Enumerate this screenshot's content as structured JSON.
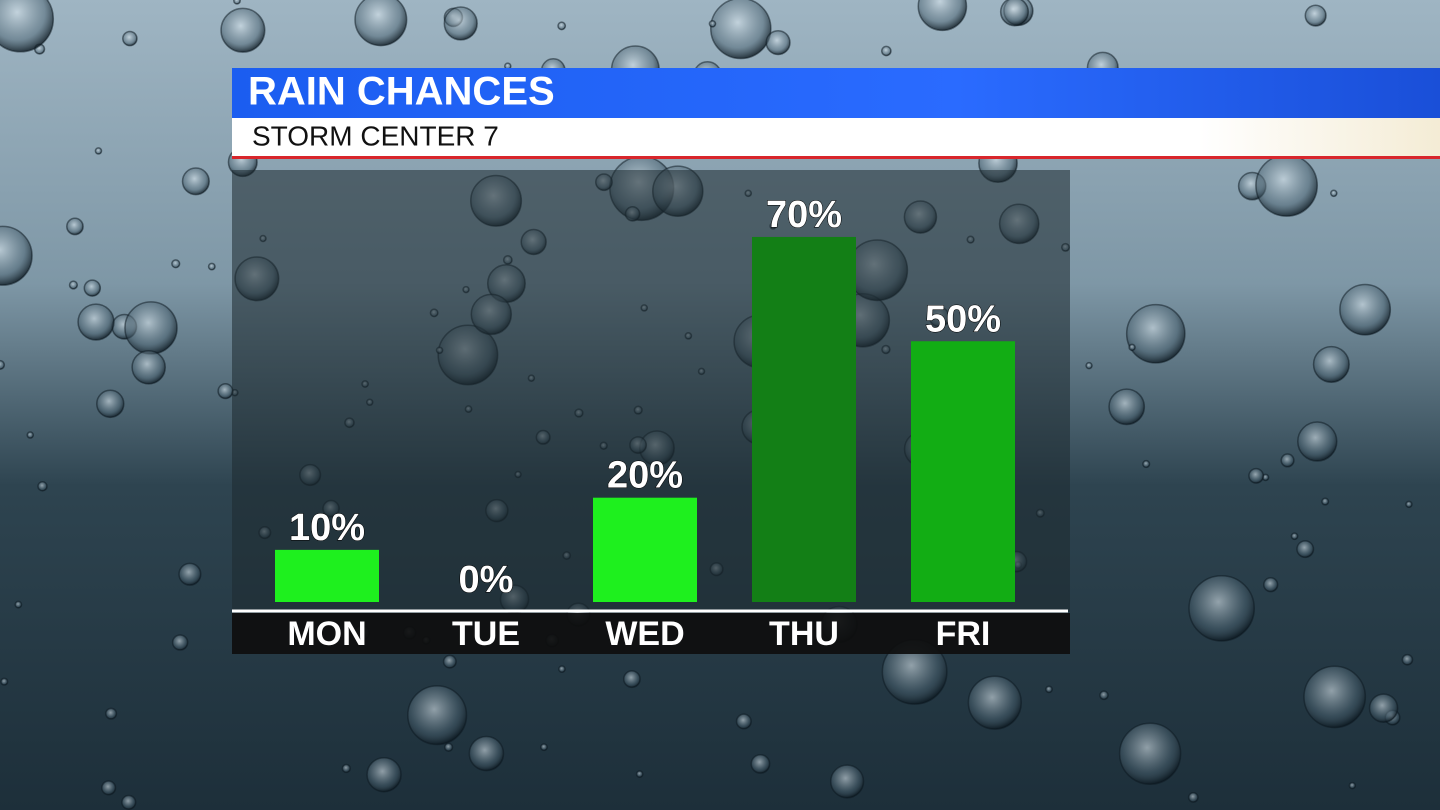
{
  "chart_data": {
    "type": "bar",
    "title": "RAIN CHANCES",
    "subtitle": "STORM CENTER 7",
    "categories": [
      "MON",
      "TUE",
      "WED",
      "THU",
      "FRI"
    ],
    "values": [
      10,
      0,
      20,
      70,
      50
    ],
    "value_labels": [
      "10%",
      "0%",
      "20%",
      "70%",
      "50%"
    ],
    "colors": [
      "#1ef01e",
      "#1ef01e",
      "#1ef01e",
      "#137f16",
      "#12ad14"
    ]
  }
}
